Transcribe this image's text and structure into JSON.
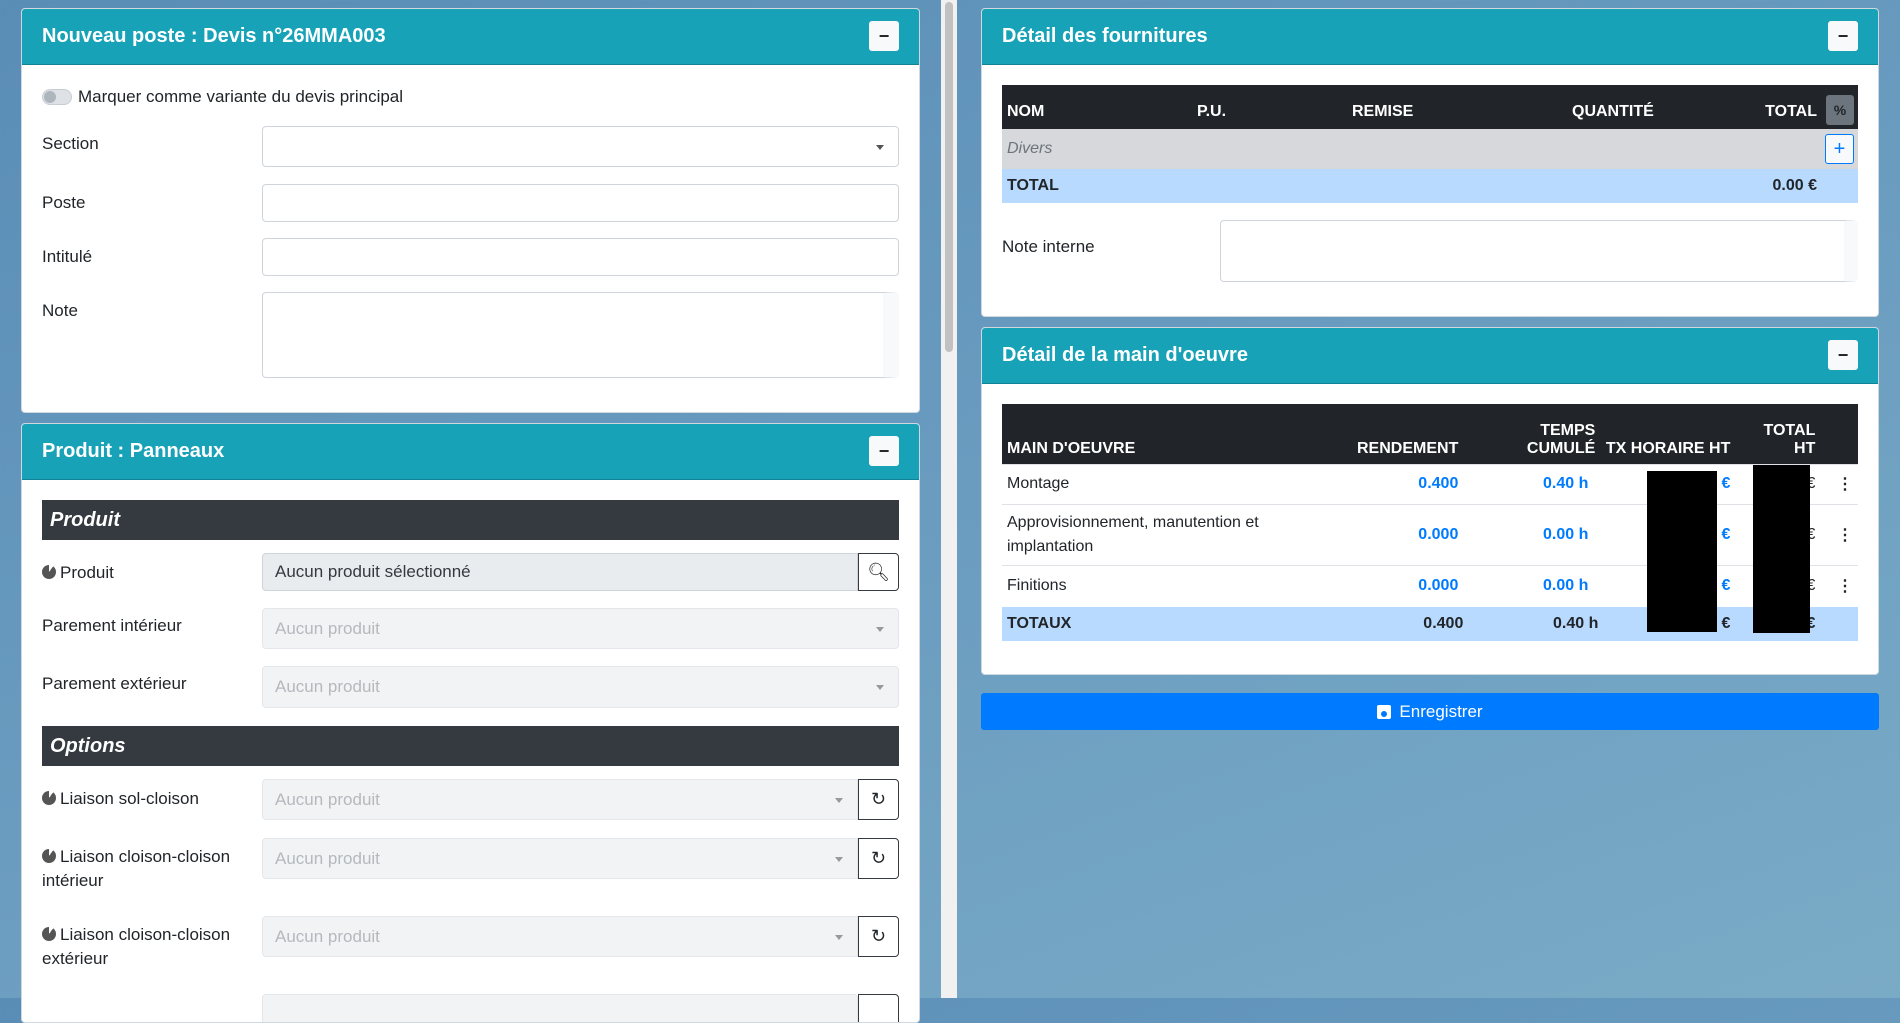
{
  "left": {
    "new_post": {
      "title": "Nouveau poste : Devis n°26MMA003",
      "collapse_label": "−",
      "variant_toggle_label": "Marquer comme variante du devis principal",
      "variant_toggle_on": false,
      "section_label": "Section",
      "section_value": "",
      "poste_label": "Poste",
      "poste_value": "",
      "intitule_label": "Intitulé",
      "intitule_value": "",
      "note_label": "Note",
      "note_value": ""
    },
    "product": {
      "title": "Produit : Panneaux",
      "collapse_label": "−",
      "produit_heading": "Produit",
      "produit_label": "Produit",
      "produit_value": "Aucun produit sélectionné",
      "parement_int_label": "Parement intérieur",
      "parement_int_placeholder": "Aucun produit",
      "parement_ext_label": "Parement extérieur",
      "parement_ext_placeholder": "Aucun produit",
      "options_heading": "Options",
      "options": [
        {
          "label": "Liaison sol-cloison",
          "placeholder": "Aucun produit"
        },
        {
          "label": "Liaison cloison-cloison intérieur",
          "placeholder": "Aucun produit"
        },
        {
          "label": "Liaison cloison-cloison extérieur",
          "placeholder": "Aucun produit"
        }
      ]
    }
  },
  "supplies": {
    "title": "Détail des fournitures",
    "collapse_label": "−",
    "columns": [
      "NOM",
      "P.U.",
      "REMISE",
      "QUANTITÉ",
      "TOTAL"
    ],
    "percent_label": "%",
    "group_row": "Divers",
    "add_label": "+",
    "total_label": "TOTAL",
    "total_value": "0.00 €",
    "note_label": "Note interne",
    "note_value": ""
  },
  "labour": {
    "title": "Détail de la main d'oeuvre",
    "collapse_label": "−",
    "columns": [
      "MAIN D'OEUVRE",
      "RENDEMENT",
      "TEMPS CUMULÉ",
      "TX HORAIRE HT",
      "TOTAL HT"
    ],
    "rows": [
      {
        "name": "Montage",
        "rendement": "0.400",
        "temps": "0.40 h",
        "tx": "€",
        "total": "€"
      },
      {
        "name": "Approvisionnement, manutention et implantation",
        "rendement": "0.000",
        "temps": "0.00 h",
        "tx": "€",
        "total": "€"
      },
      {
        "name": "Finitions",
        "rendement": "0.000",
        "temps": "0.00 h",
        "tx": "€",
        "total": "€"
      }
    ],
    "totals": {
      "label": "TOTAUX",
      "rendement": "0.400",
      "temps": "0.40 h",
      "tx": "€",
      "total": "€"
    },
    "menu_icon": "⋮"
  },
  "save_label": "Enregistrer",
  "colors": {
    "header": "#17a2b8",
    "primary": "#007bff",
    "dark": "#343a40",
    "total_row": "#b8daff"
  }
}
